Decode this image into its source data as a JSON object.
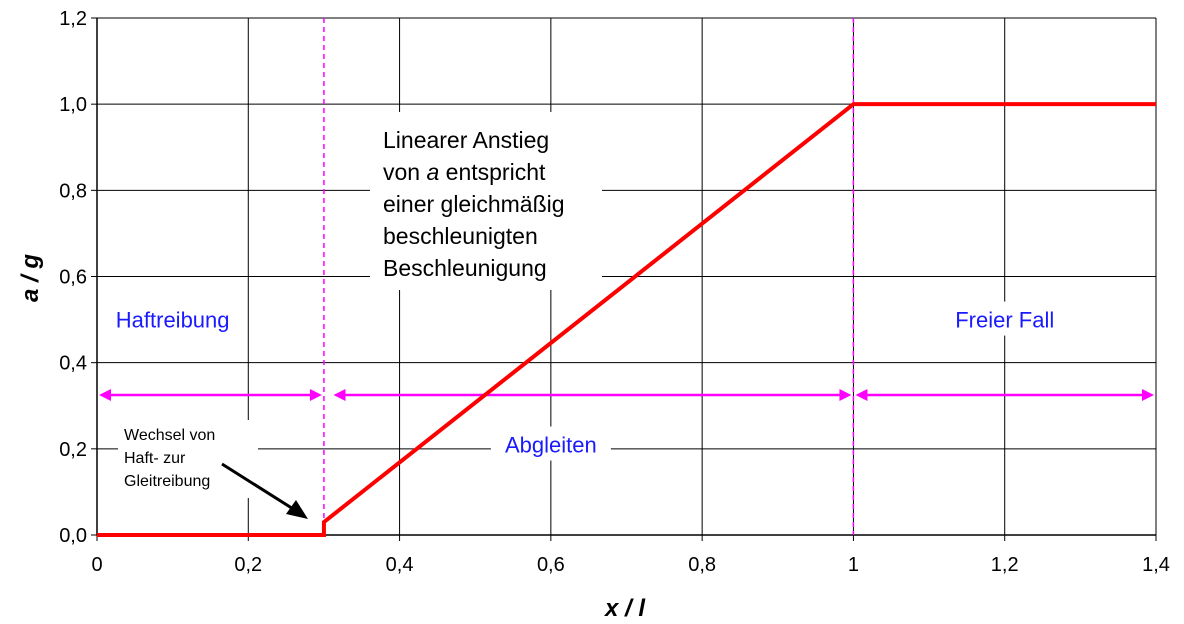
{
  "chart_data": {
    "type": "line",
    "x_ticks": [
      "0",
      "0,2",
      "0,4",
      "0,6",
      "0,8",
      "1",
      "1,2",
      "1,4"
    ],
    "y_ticks": [
      "0,0",
      "0,2",
      "0,4",
      "0,6",
      "0,8",
      "1,0",
      "1,2"
    ],
    "xlim": [
      0,
      1.4
    ],
    "ylim": [
      0,
      1.2
    ],
    "xlabel": "x / l",
    "ylabel": "a / g",
    "grid": true,
    "series": [
      {
        "color": "#ff0000",
        "x": [
          0,
          0.3,
          0.3,
          1.0,
          1.4
        ],
        "y": [
          0,
          0,
          0.03,
          1.0,
          1.0
        ]
      }
    ],
    "vlines": [
      0.3,
      1.0
    ],
    "vline_color": "#ff00ff",
    "arrow_y": 0.325,
    "arrow_color": "#ff00ff",
    "arrow_segments": [
      [
        0,
        0.3
      ],
      [
        0.31,
        1.0
      ],
      [
        1.0,
        1.4
      ]
    ],
    "region_labels": [
      {
        "text": "Haftreibung",
        "x": 0.1,
        "y": 0.5
      },
      {
        "text": "Abgleiten",
        "x": 0.6,
        "y": 0.21
      },
      {
        "text": "Freier Fall",
        "x": 1.2,
        "y": 0.5
      }
    ],
    "annotation_main": {
      "lines": [
        "Linearer Anstieg",
        "von ",
        "einer gleichmäßig",
        "beschleunigten",
        "Beschleunigung"
      ],
      "italic_word": "a",
      "line2_rest": " entspricht"
    },
    "annotation_small": {
      "lines": [
        "Wechsel von",
        "Haft- zur",
        "Gleitreibung"
      ]
    },
    "colors": {
      "grid": "#000000",
      "label_blue": "#1a1aff"
    }
  }
}
